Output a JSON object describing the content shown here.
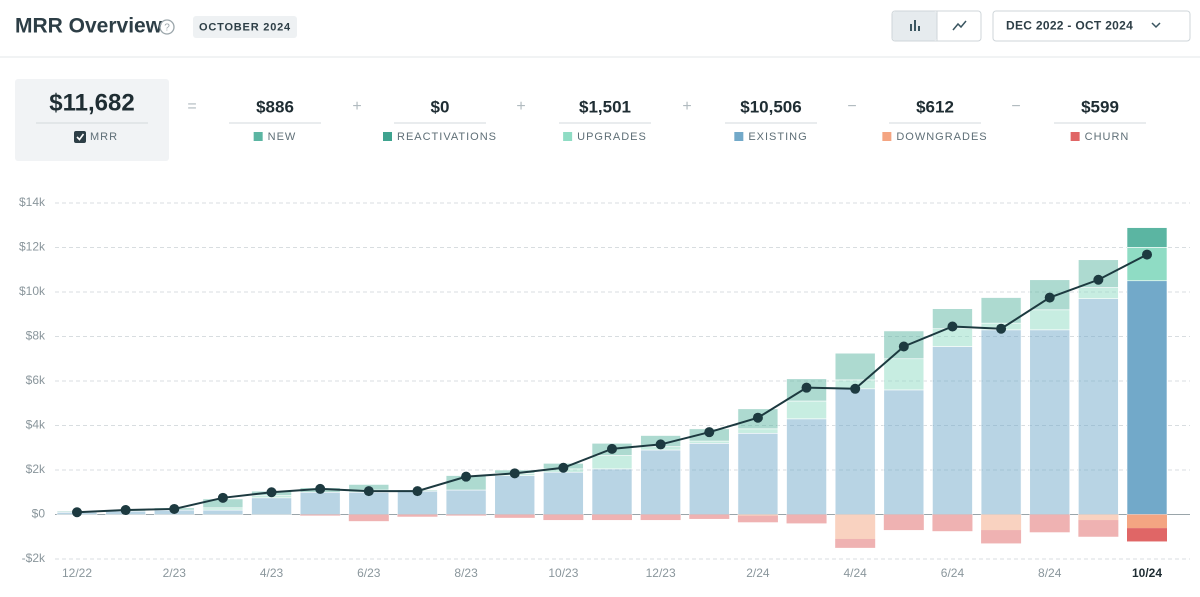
{
  "header": {
    "title": "MRR Overview",
    "badge": "OCTOBER 2024",
    "range": "DEC 2022 - OCT 2024"
  },
  "summary": {
    "total": "$11,682",
    "total_label": "MRR",
    "operators": [
      "=",
      "+",
      "+",
      "+",
      "−",
      "−"
    ],
    "values": [
      "$886",
      "$0",
      "$1,501",
      "$10,506",
      "$612",
      "$599"
    ]
  },
  "chart_data": {
    "type": "stacked-bar-line",
    "categories": [
      "12/22",
      null,
      "2/23",
      null,
      "4/23",
      null,
      "6/23",
      null,
      "8/23",
      null,
      "10/23",
      null,
      "12/23",
      null,
      "2/24",
      null,
      "4/24",
      null,
      "6/24",
      null,
      "8/24",
      null,
      "10/24"
    ],
    "series": [
      {
        "name": "NEW",
        "color": "#5bb5a2",
        "values": [
          50,
          50,
          100,
          400,
          200,
          200,
          250,
          50,
          650,
          150,
          250,
          550,
          500,
          550,
          900,
          1000,
          1200,
          1250,
          900,
          1150,
          1350,
          1250,
          886
        ]
      },
      {
        "name": "REACTIVATIONS",
        "color": "#3fa38f",
        "values": [
          0,
          0,
          0,
          0,
          0,
          0,
          0,
          0,
          0,
          0,
          0,
          0,
          0,
          0,
          0,
          0,
          0,
          0,
          0,
          0,
          0,
          0,
          0
        ]
      },
      {
        "name": "UPGRADES",
        "color": "#8fdcc4",
        "values": [
          0,
          0,
          0,
          100,
          100,
          0,
          100,
          0,
          0,
          100,
          150,
          600,
          150,
          100,
          200,
          800,
          400,
          1400,
          800,
          300,
          900,
          500,
          1501
        ]
      },
      {
        "name": "EXISTING",
        "color": "#72a9c9",
        "values": [
          100,
          150,
          200,
          200,
          750,
          1000,
          1000,
          1050,
          1100,
          1750,
          1900,
          2050,
          2900,
          3200,
          3650,
          4300,
          5650,
          5600,
          7550,
          8300,
          8300,
          9700,
          10506
        ]
      },
      {
        "name": "DOWNGRADES",
        "color": "#f4a582",
        "values": [
          0,
          0,
          0,
          0,
          0,
          0,
          0,
          0,
          0,
          0,
          0,
          0,
          0,
          0,
          -50,
          0,
          -1100,
          0,
          0,
          -700,
          0,
          -250,
          -612
        ]
      },
      {
        "name": "CHURN",
        "color": "#e06666",
        "values": [
          0,
          0,
          0,
          0,
          0,
          -50,
          -300,
          -100,
          -50,
          -150,
          -250,
          -250,
          -250,
          -200,
          -300,
          -400,
          -400,
          -700,
          -750,
          -600,
          -800,
          -750,
          -599
        ]
      }
    ],
    "line": {
      "color": "#1d3a40",
      "values": [
        100,
        200,
        250,
        750,
        1000,
        1150,
        1050,
        1050,
        1700,
        1850,
        2100,
        2950,
        3150,
        3700,
        4350,
        5700,
        5650,
        7550,
        8450,
        8350,
        9750,
        10550,
        11682
      ]
    },
    "ylim": [
      -2000,
      14000
    ],
    "yticks": [
      {
        "value": -2000,
        "label": "-$2k"
      },
      {
        "value": 0,
        "label": "$0"
      },
      {
        "value": 2000,
        "label": "$2k"
      },
      {
        "value": 4000,
        "label": "$4k"
      },
      {
        "value": 6000,
        "label": "$6k"
      },
      {
        "value": 8000,
        "label": "$8k"
      },
      {
        "value": 10000,
        "label": "$10k"
      },
      {
        "value": 12000,
        "label": "$12k"
      },
      {
        "value": 14000,
        "label": "$14k"
      }
    ],
    "grid": true
  }
}
